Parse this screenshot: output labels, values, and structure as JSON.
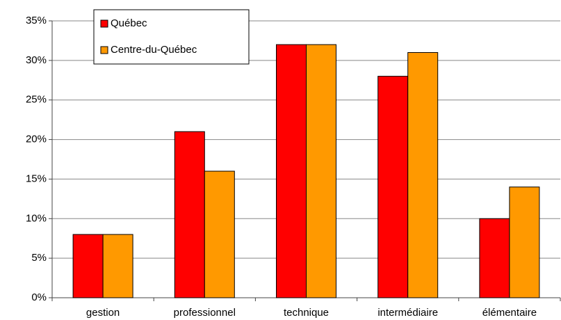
{
  "chart_data": {
    "type": "bar",
    "categories": [
      "gestion",
      "professionnel",
      "technique",
      "intermédiaire",
      "élémentaire"
    ],
    "series": [
      {
        "name": "Québec",
        "color": "#ff0000",
        "values": [
          8,
          21,
          32,
          28,
          10
        ]
      },
      {
        "name": "Centre-du-Québec",
        "color": "#ff9900",
        "values": [
          8,
          16,
          32,
          31,
          14
        ]
      }
    ],
    "ylim": [
      0,
      35
    ],
    "yticks": [
      {
        "value": 0,
        "label": "0%"
      },
      {
        "value": 5,
        "label": "5%"
      },
      {
        "value": 10,
        "label": "10%"
      },
      {
        "value": 15,
        "label": "15%"
      },
      {
        "value": 20,
        "label": "20%"
      },
      {
        "value": 25,
        "label": "25%"
      },
      {
        "value": 30,
        "label": "30%"
      },
      {
        "value": 35,
        "label": "35%"
      }
    ],
    "grid": true,
    "legend": "upper left"
  }
}
